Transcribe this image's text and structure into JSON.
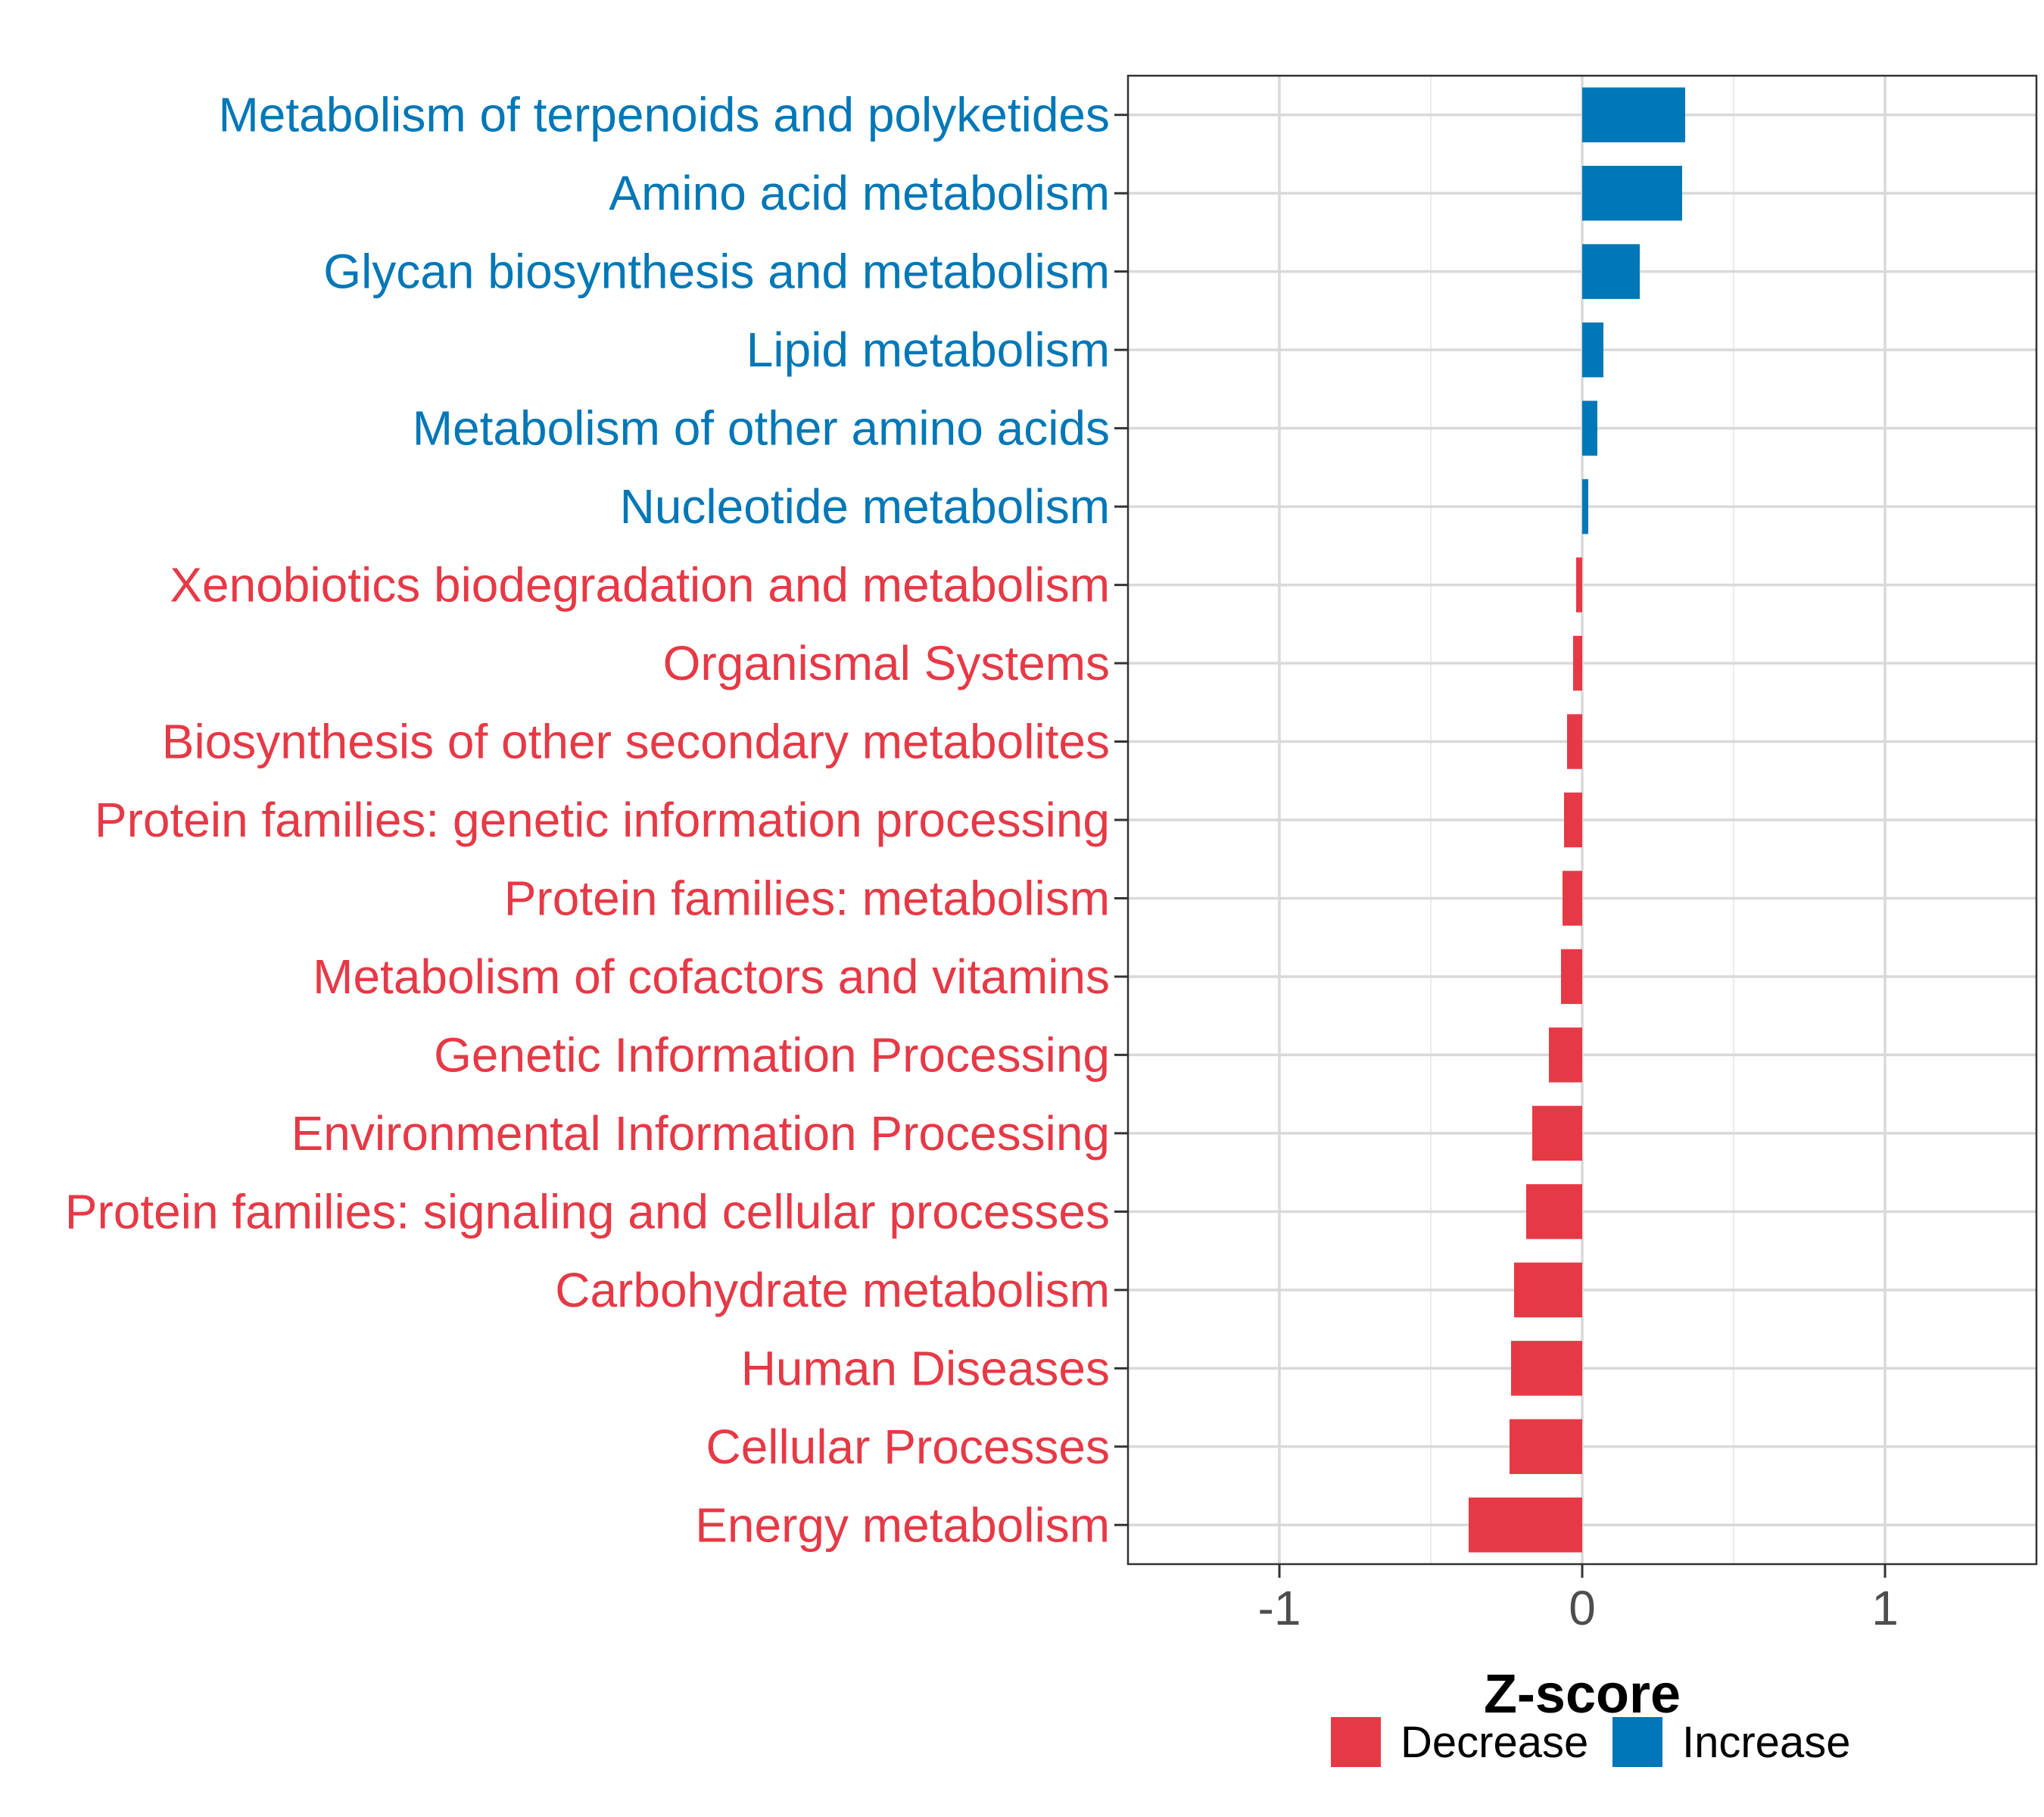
{
  "chart_data": {
    "type": "bar",
    "orientation": "horizontal",
    "xlabel": "Z-score",
    "xlim": [
      -1.5,
      1.5
    ],
    "xticks": [
      -1,
      0,
      1
    ],
    "xtick_labels": [
      "-1",
      "0",
      "1"
    ],
    "grid": true,
    "legend_position": "bottom",
    "categories": [
      "Metabolism of terpenoids and polyketides",
      "Amino acid metabolism",
      "Glycan biosynthesis and metabolism",
      "Lipid metabolism",
      "Metabolism of other amino acids",
      "Nucleotide metabolism",
      "Xenobiotics biodegradation and metabolism",
      "Organismal Systems",
      "Biosynthesis of other secondary metabolites",
      "Protein families: genetic information processing",
      "Protein families: metabolism",
      "Metabolism of cofactors and vitamins",
      "Genetic Information Processing",
      "Environmental Information Processing",
      "Protein families: signaling and cellular processes",
      "Carbohydrate metabolism",
      "Human Diseases",
      "Cellular Processes",
      "Energy metabolism"
    ],
    "values": [
      0.34,
      0.33,
      0.19,
      0.07,
      0.05,
      0.02,
      -0.02,
      -0.03,
      -0.05,
      -0.06,
      -0.065,
      -0.07,
      -0.11,
      -0.165,
      -0.185,
      -0.225,
      -0.235,
      -0.24,
      -0.375
    ],
    "groups": [
      "Increase",
      "Increase",
      "Increase",
      "Increase",
      "Increase",
      "Increase",
      "Decrease",
      "Decrease",
      "Decrease",
      "Decrease",
      "Decrease",
      "Decrease",
      "Decrease",
      "Decrease",
      "Decrease",
      "Decrease",
      "Decrease",
      "Decrease",
      "Decrease"
    ],
    "legend": [
      {
        "name": "Decrease",
        "color": "#E63946"
      },
      {
        "name": "Increase",
        "color": "#0077B6"
      }
    ],
    "colors": {
      "Decrease": "#E63946",
      "Increase": "#0077B6"
    }
  }
}
